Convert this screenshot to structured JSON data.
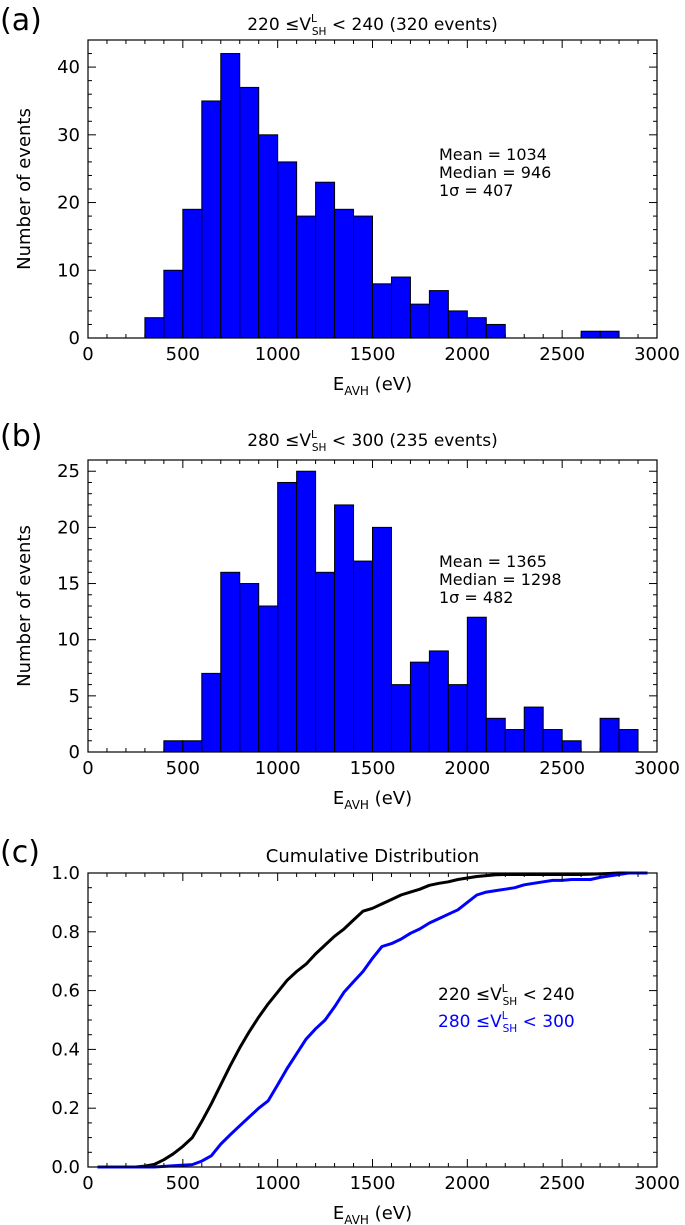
{
  "chart_data": [
    {
      "type": "bar",
      "panel": "(a)",
      "title": {
        "pre": "220 ≤V",
        "sup": "L",
        "sub": "SH",
        "post": " < 240 (320 events)"
      },
      "xlabel": {
        "main": "E",
        "sub": "AVH",
        "post": " (eV)"
      },
      "ylabel": "Number of events",
      "xlim": [
        0,
        3000
      ],
      "ylim": [
        0,
        44
      ],
      "xticks": [
        0,
        500,
        1000,
        1500,
        2000,
        2500,
        3000
      ],
      "yticks": [
        0,
        10,
        20,
        30,
        40
      ],
      "bin_edges": [
        300,
        400,
        500,
        600,
        700,
        800,
        900,
        1000,
        1100,
        1200,
        1300,
        1400,
        1500,
        1600,
        1700,
        1800,
        1900,
        2000,
        2100,
        2200,
        2300,
        2400,
        2500,
        2600,
        2700,
        2800
      ],
      "values": [
        3,
        10,
        19,
        35,
        42,
        37,
        30,
        26,
        18,
        23,
        19,
        18,
        8,
        9,
        5,
        7,
        4,
        3,
        2,
        0,
        0,
        0,
        0,
        1,
        1
      ],
      "bar_color": "#0000ff",
      "stats": [
        "Mean = 1034",
        "Median = 946",
        "1σ = 407"
      ]
    },
    {
      "type": "bar",
      "panel": "(b)",
      "title": {
        "pre": "280 ≤V",
        "sup": "L",
        "sub": "SH",
        "post": " < 300 (235 events)"
      },
      "xlabel": {
        "main": "E",
        "sub": "AVH",
        "post": " (eV)"
      },
      "ylabel": "Number of events",
      "xlim": [
        0,
        3000
      ],
      "ylim": [
        0,
        26
      ],
      "xticks": [
        0,
        500,
        1000,
        1500,
        2000,
        2500,
        3000
      ],
      "yticks": [
        0,
        5,
        10,
        15,
        20,
        25
      ],
      "bin_edges": [
        400,
        500,
        600,
        700,
        800,
        900,
        1000,
        1100,
        1200,
        1300,
        1400,
        1500,
        1600,
        1700,
        1800,
        1900,
        2000,
        2100,
        2200,
        2300,
        2400,
        2500,
        2600,
        2700,
        2800,
        2900
      ],
      "values": [
        1,
        1,
        7,
        16,
        15,
        13,
        24,
        25,
        16,
        22,
        17,
        20,
        6,
        8,
        9,
        6,
        12,
        3,
        2,
        4,
        2,
        1,
        0,
        3,
        2
      ],
      "bar_color": "#0000ff",
      "stats": [
        "Mean = 1365",
        "Median = 1298",
        "1σ = 482"
      ]
    },
    {
      "type": "line",
      "panel": "(c)",
      "title": "Cumulative Distribution",
      "xlabel": {
        "main": "E",
        "sub": "AVH",
        "post": " (eV)"
      },
      "ylabel": "",
      "xlim": [
        0,
        3000
      ],
      "ylim": [
        0,
        1
      ],
      "xticks": [
        0,
        500,
        1000,
        1500,
        2000,
        2500,
        3000
      ],
      "yticks": [
        0.0,
        0.2,
        0.4,
        0.6,
        0.8,
        1.0
      ],
      "ytick_labels": [
        "0.0",
        "0.2",
        "0.4",
        "0.6",
        "0.8",
        "1.0"
      ],
      "series": [
        {
          "name": {
            "pre": "220 ≤V",
            "sup": "L",
            "sub": "SH",
            "post": " < 240"
          },
          "color": "#000000",
          "x": [
            50,
            150,
            250,
            300,
            350,
            400,
            450,
            500,
            550,
            600,
            650,
            700,
            750,
            800,
            850,
            900,
            950,
            1000,
            1050,
            1100,
            1150,
            1200,
            1250,
            1300,
            1350,
            1400,
            1450,
            1500,
            1550,
            1600,
            1650,
            1700,
            1750,
            1800,
            1850,
            1900,
            1950,
            2000,
            2050,
            2100,
            2150,
            2200,
            2300,
            2400,
            2500,
            2600,
            2700,
            2800,
            2950
          ],
          "y": [
            0,
            0,
            0,
            0.003,
            0.009,
            0.025,
            0.045,
            0.07,
            0.1,
            0.155,
            0.215,
            0.28,
            0.345,
            0.405,
            0.46,
            0.51,
            0.555,
            0.595,
            0.635,
            0.665,
            0.69,
            0.725,
            0.755,
            0.785,
            0.81,
            0.84,
            0.87,
            0.88,
            0.895,
            0.91,
            0.925,
            0.935,
            0.945,
            0.958,
            0.965,
            0.97,
            0.978,
            0.983,
            0.988,
            0.991,
            0.994,
            0.995,
            0.995,
            0.995,
            0.995,
            0.995,
            0.997,
            1.0,
            1.0
          ]
        },
        {
          "name": {
            "pre": "280 ≤V",
            "sup": "L",
            "sub": "SH",
            "post": " < 300"
          },
          "color": "#0000ff",
          "x": [
            50,
            150,
            250,
            350,
            450,
            550,
            600,
            650,
            700,
            750,
            800,
            850,
            900,
            950,
            1000,
            1050,
            1100,
            1150,
            1200,
            1250,
            1300,
            1350,
            1400,
            1450,
            1500,
            1550,
            1600,
            1650,
            1700,
            1750,
            1800,
            1850,
            1900,
            1950,
            2000,
            2050,
            2100,
            2150,
            2200,
            2250,
            2300,
            2350,
            2400,
            2450,
            2500,
            2550,
            2600,
            2650,
            2700,
            2750,
            2800,
            2850,
            2950
          ],
          "y": [
            0,
            0,
            0,
            0,
            0.004,
            0.008,
            0.02,
            0.038,
            0.078,
            0.11,
            0.14,
            0.17,
            0.2,
            0.225,
            0.28,
            0.335,
            0.385,
            0.435,
            0.47,
            0.5,
            0.545,
            0.595,
            0.63,
            0.665,
            0.71,
            0.75,
            0.76,
            0.775,
            0.795,
            0.81,
            0.83,
            0.845,
            0.86,
            0.875,
            0.9,
            0.925,
            0.935,
            0.94,
            0.945,
            0.95,
            0.96,
            0.965,
            0.97,
            0.975,
            0.975,
            0.978,
            0.978,
            0.978,
            0.985,
            0.99,
            0.995,
            1.0,
            1.0
          ]
        }
      ]
    }
  ]
}
